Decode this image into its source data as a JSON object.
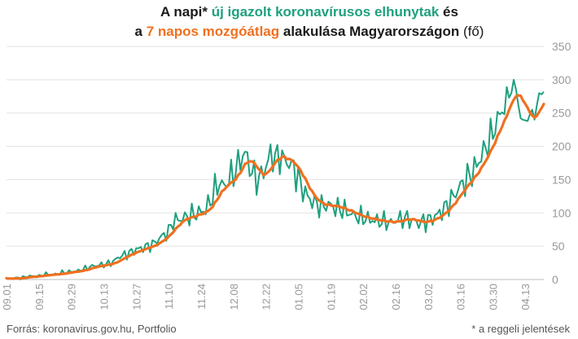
{
  "title": {
    "line1": {
      "part1": "A napi* ",
      "highlight": "új igazolt koronavírusos elhunytak",
      "part2": " és"
    },
    "line2": {
      "part1": "a ",
      "highlight": "7 napos mozgóátlag",
      "part2": " alakulása Magyarországon ",
      "unit": "(fő)"
    }
  },
  "footer": {
    "source": "Forrás: koronavirus.gov.hu, Portfolio",
    "note": "* a reggeli jelentések"
  },
  "colors": {
    "daily": "#1fa07e",
    "average": "#f07020",
    "grid": "#e2e2e2",
    "axis_text": "#999999"
  },
  "chart_data": {
    "type": "line",
    "start_date": "2020-09-01",
    "x_tick_labels": [
      "09.01",
      "09.15",
      "09.29",
      "10.13",
      "10.27",
      "11.10",
      "11.24",
      "12.08",
      "12.22",
      "01.05",
      "01.19",
      "02.02",
      "02.16",
      "03.02",
      "03.16",
      "03.30",
      "04.13"
    ],
    "y_ticks": [
      0,
      50,
      100,
      150,
      200,
      250,
      300,
      350
    ],
    "ylim": [
      0,
      350
    ],
    "grid": "horizontal",
    "daily_anchors": [
      [
        0,
        1
      ],
      [
        5,
        2
      ],
      [
        7,
        3
      ],
      [
        10,
        5
      ],
      [
        14,
        5
      ],
      [
        17,
        8
      ],
      [
        20,
        7
      ],
      [
        24,
        10
      ],
      [
        28,
        12
      ],
      [
        31,
        13
      ],
      [
        35,
        18
      ],
      [
        38,
        21
      ],
      [
        42,
        22
      ],
      [
        45,
        25
      ],
      [
        49,
        35
      ],
      [
        52,
        38
      ],
      [
        56,
        45
      ],
      [
        59,
        48
      ],
      [
        63,
        52
      ],
      [
        66,
        62
      ],
      [
        70,
        72
      ],
      [
        72,
        88
      ],
      [
        76,
        92
      ],
      [
        79,
        95
      ],
      [
        83,
        100
      ],
      [
        86,
        105
      ],
      [
        88,
        118
      ],
      [
        90,
        135
      ],
      [
        92,
        145
      ],
      [
        94,
        140
      ],
      [
        97,
        155
      ],
      [
        99,
        165
      ],
      [
        101,
        180
      ],
      [
        103,
        190
      ],
      [
        105,
        170
      ],
      [
        107,
        155
      ],
      [
        109,
        150
      ],
      [
        112,
        170
      ],
      [
        114,
        188
      ],
      [
        116,
        182
      ],
      [
        118,
        185
      ],
      [
        120,
        180
      ],
      [
        123,
        172
      ],
      [
        125,
        160
      ],
      [
        128,
        135
      ],
      [
        131,
        120
      ],
      [
        133,
        115
      ],
      [
        136,
        110
      ],
      [
        139,
        112
      ],
      [
        142,
        108
      ],
      [
        145,
        105
      ],
      [
        148,
        100
      ],
      [
        151,
        95
      ],
      [
        154,
        93
      ],
      [
        157,
        90
      ],
      [
        160,
        88
      ],
      [
        163,
        87
      ],
      [
        166,
        85
      ],
      [
        169,
        90
      ],
      [
        172,
        92
      ],
      [
        175,
        88
      ],
      [
        178,
        85
      ],
      [
        181,
        88
      ],
      [
        184,
        92
      ],
      [
        187,
        100
      ],
      [
        190,
        110
      ],
      [
        193,
        125
      ],
      [
        196,
        140
      ],
      [
        199,
        152
      ],
      [
        202,
        165
      ],
      [
        205,
        185
      ],
      [
        208,
        205
      ],
      [
        211,
        230
      ],
      [
        213,
        248
      ],
      [
        216,
        265
      ],
      [
        218,
        280
      ],
      [
        219,
        300
      ],
      [
        220,
        285
      ],
      [
        221,
        262
      ],
      [
        222,
        242
      ],
      [
        223,
        240
      ],
      [
        225,
        238
      ],
      [
        226,
        248
      ],
      [
        227,
        255
      ],
      [
        228,
        240
      ],
      [
        229,
        262
      ],
      [
        230,
        280
      ],
      [
        231,
        278
      ],
      [
        232,
        282
      ]
    ],
    "daily_values": [],
    "series": [
      {
        "name": "új igazolt koronavírusos elhunytak",
        "values": []
      },
      {
        "name": "7 napos mozgóátlag",
        "values": []
      }
    ]
  }
}
